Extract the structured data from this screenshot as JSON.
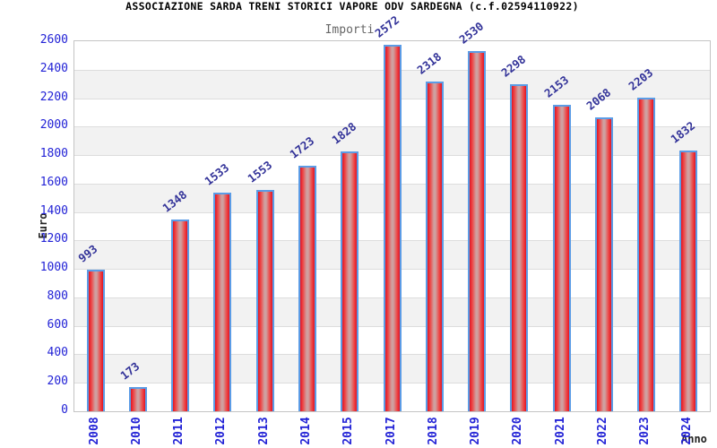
{
  "header": {
    "title": "ASSOCIAZIONE SARDA TRENI STORICI VAPORE ODV SARDEGNA (c.f.02594110922)",
    "subtitle": "Importi"
  },
  "chart_data": {
    "type": "bar",
    "title": "ASSOCIAZIONE SARDA TRENI STORICI VAPORE ODV SARDEGNA (c.f.02594110922)",
    "subtitle": "Importi",
    "xlabel": "Anno",
    "ylabel": "Euro",
    "categories": [
      "2008",
      "2010",
      "2011",
      "2012",
      "2013",
      "2014",
      "2015",
      "2017",
      "2018",
      "2019",
      "2020",
      "2021",
      "2022",
      "2023",
      "2024"
    ],
    "values": [
      993,
      173,
      1348,
      1533,
      1553,
      1723,
      1828,
      2572,
      2318,
      2530,
      2298,
      2153,
      2068,
      2203,
      1832
    ],
    "ylim": [
      0,
      2600
    ],
    "ytick_step": 200,
    "yticks": [
      0,
      200,
      400,
      600,
      800,
      1000,
      1200,
      1400,
      1600,
      1800,
      2000,
      2200,
      2400,
      2600
    ],
    "grid": "horizontal gridlines with alternating gray/white 200-unit bands",
    "legend": "none",
    "colors": {
      "bar_edge_red": "#df1626",
      "bar_mid_red": "#ee4545",
      "bar_highlight": "#cfa0a0",
      "bar_border_blue": "#5b9ce6",
      "tick_label_blue": "#2222d6",
      "value_label_navy": "#333399",
      "band_gray": "#f2f2f2",
      "gridline_gray": "#dddddd",
      "subtitle_gray": "#666666",
      "title_black": "#000000"
    }
  }
}
